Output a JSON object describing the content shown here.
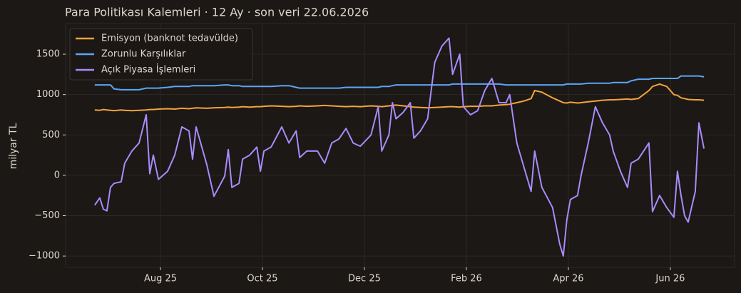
{
  "chart_data": {
    "type": "line",
    "title": "Para Politikası Kalemleri · 12 Ay · son veri 22.06.2026",
    "y_label": "milyar TL",
    "grid": true,
    "legend": "upper left",
    "xlim": [
      6.14,
      19.26
    ],
    "ylim": [
      -1140,
      1880
    ],
    "xticks": [
      {
        "value": 8,
        "label": "Aug 25"
      },
      {
        "value": 10,
        "label": "Oct 25"
      },
      {
        "value": 12,
        "label": "Dec 25"
      },
      {
        "value": 14,
        "label": "Feb 26"
      },
      {
        "value": 16,
        "label": "Apr 26"
      },
      {
        "value": 18,
        "label": "Jun 26"
      }
    ],
    "yticks": [
      {
        "value": -1000,
        "label": "−1000"
      },
      {
        "value": -500,
        "label": "−500"
      },
      0,
      500,
      1000,
      1500
    ],
    "x": [
      6.71,
      6.81,
      6.88,
      6.95,
      7.02,
      7.09,
      7.23,
      7.3,
      7.44,
      7.58,
      7.72,
      7.79,
      7.86,
      7.96,
      8.14,
      8.28,
      8.42,
      8.56,
      8.63,
      8.7,
      8.91,
      9.05,
      9.26,
      9.33,
      9.4,
      9.54,
      9.61,
      9.75,
      9.89,
      9.96,
      10.03,
      10.17,
      10.38,
      10.52,
      10.66,
      10.73,
      10.87,
      11.08,
      11.22,
      11.36,
      11.5,
      11.64,
      11.78,
      11.92,
      12.13,
      12.27,
      12.34,
      12.48,
      12.55,
      12.62,
      12.76,
      12.9,
      12.97,
      13.1,
      13.24,
      13.38,
      13.52,
      13.66,
      13.73,
      13.87,
      13.94,
      14.08,
      14.22,
      14.36,
      14.5,
      14.64,
      14.78,
      14.85,
      14.99,
      15.13,
      15.27,
      15.34,
      15.48,
      15.69,
      15.83,
      15.9,
      15.97,
      16.04,
      16.18,
      16.25,
      16.39,
      16.53,
      16.67,
      16.81,
      16.88,
      17.02,
      17.16,
      17.23,
      17.37,
      17.58,
      17.65,
      17.79,
      17.93,
      18.07,
      18.14,
      18.21,
      18.28,
      18.35,
      18.49,
      18.56,
      18.66
    ],
    "series": [
      {
        "name": "Emisyon (banknot tedavülde)",
        "color": "#f5a33c",
        "values": [
          810,
          805,
          815,
          810,
          805,
          800,
          810,
          805,
          800,
          805,
          810,
          815,
          815,
          820,
          825,
          820,
          830,
          825,
          830,
          835,
          830,
          835,
          840,
          845,
          840,
          845,
          850,
          845,
          850,
          850,
          855,
          860,
          855,
          850,
          855,
          860,
          855,
          860,
          865,
          860,
          855,
          850,
          855,
          850,
          860,
          855,
          850,
          860,
          865,
          870,
          860,
          850,
          845,
          840,
          835,
          840,
          845,
          850,
          850,
          845,
          850,
          855,
          855,
          860,
          860,
          870,
          875,
          880,
          900,
          920,
          950,
          1050,
          1030,
          960,
          920,
          900,
          895,
          905,
          895,
          900,
          910,
          920,
          930,
          935,
          935,
          940,
          945,
          940,
          950,
          1050,
          1100,
          1130,
          1100,
          1000,
          990,
          960,
          950,
          940,
          935,
          935,
          930
        ]
      },
      {
        "name": "Zorunlu Karşılıklar",
        "color": "#5ea5f5",
        "values": [
          1120,
          1120,
          1120,
          1120,
          1120,
          1070,
          1060,
          1060,
          1060,
          1060,
          1080,
          1080,
          1080,
          1080,
          1090,
          1100,
          1100,
          1100,
          1110,
          1110,
          1110,
          1110,
          1120,
          1120,
          1110,
          1110,
          1100,
          1100,
          1100,
          1100,
          1100,
          1100,
          1110,
          1110,
          1090,
          1080,
          1080,
          1080,
          1080,
          1080,
          1080,
          1090,
          1090,
          1090,
          1090,
          1090,
          1100,
          1100,
          1110,
          1120,
          1120,
          1120,
          1120,
          1120,
          1120,
          1120,
          1120,
          1120,
          1130,
          1130,
          1130,
          1130,
          1130,
          1130,
          1130,
          1130,
          1120,
          1120,
          1120,
          1120,
          1120,
          1120,
          1120,
          1120,
          1120,
          1120,
          1130,
          1130,
          1130,
          1130,
          1140,
          1140,
          1140,
          1140,
          1150,
          1150,
          1150,
          1170,
          1190,
          1190,
          1200,
          1200,
          1200,
          1200,
          1200,
          1230,
          1230,
          1230,
          1230,
          1230,
          1220
        ]
      },
      {
        "name": "Açık Piyasa İşlemleri",
        "color": "#a98bfa",
        "values": [
          -370,
          -280,
          -420,
          -440,
          -150,
          -100,
          -80,
          150,
          300,
          400,
          750,
          20,
          250,
          -50,
          50,
          250,
          600,
          550,
          200,
          600,
          130,
          -260,
          -10,
          320,
          -150,
          -100,
          200,
          250,
          350,
          50,
          300,
          350,
          600,
          400,
          550,
          220,
          300,
          300,
          150,
          400,
          450,
          580,
          400,
          360,
          500,
          850,
          300,
          500,
          900,
          700,
          780,
          900,
          460,
          550,
          700,
          1400,
          1600,
          1700,
          1250,
          1500,
          850,
          750,
          800,
          1050,
          1200,
          900,
          900,
          1000,
          400,
          100,
          -200,
          300,
          -150,
          -400,
          -850,
          -1000,
          -550,
          -300,
          -250,
          0,
          400,
          850,
          650,
          500,
          300,
          50,
          -150,
          150,
          200,
          400,
          -450,
          -250,
          -400,
          -520,
          50,
          -250,
          -500,
          -580,
          -200,
          650,
          330
        ]
      }
    ]
  }
}
